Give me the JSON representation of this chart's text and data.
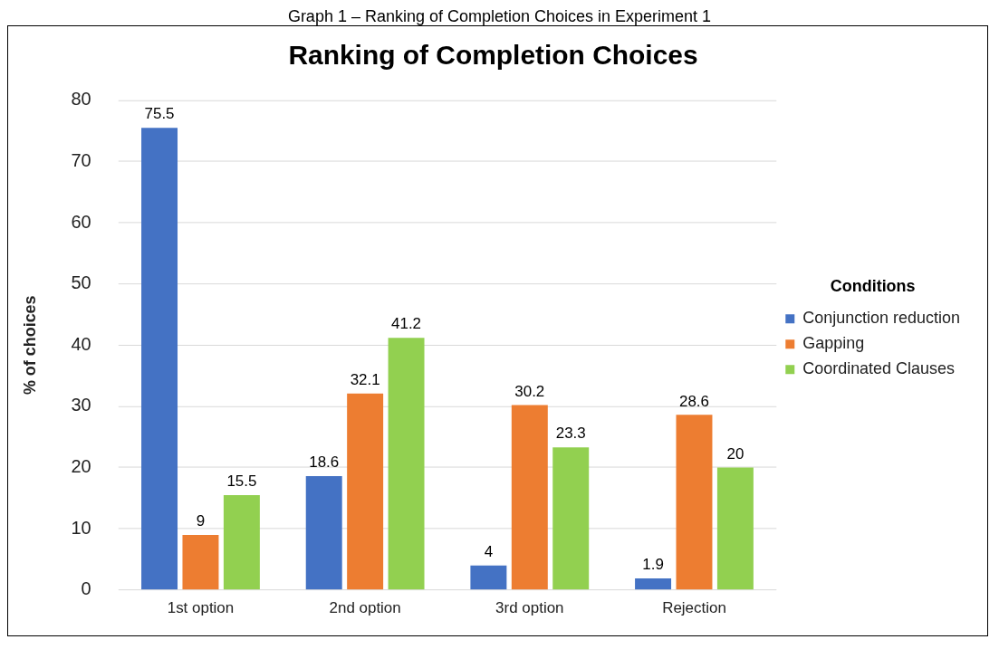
{
  "chart_data": {
    "type": "bar",
    "title": "Ranking of Completion Choices",
    "ylabel": "% of choices",
    "legend_title": "Conditions",
    "annotations": [
      "Graph 1 – Ranking of Completion Choices in Experiment 1"
    ],
    "categories": [
      "1st option",
      "2nd option",
      "3rd option",
      "Rejection"
    ],
    "series": [
      {
        "name": "Conjunction reduction",
        "color": "#4472c4",
        "values": [
          75.5,
          18.6,
          4,
          1.9
        ]
      },
      {
        "name": "Gapping",
        "color": "#ed7d31",
        "values": [
          9,
          32.1,
          30.2,
          28.6
        ]
      },
      {
        "name": "Coordinated Clauses",
        "color": "#92d050",
        "values": [
          15.5,
          41.2,
          23.3,
          20
        ]
      }
    ],
    "ylim": [
      0,
      80
    ],
    "yticks": [
      0,
      10,
      20,
      30,
      40,
      50,
      60,
      70,
      80
    ],
    "grid": "y",
    "legend": "right",
    "data_labels": true
  }
}
